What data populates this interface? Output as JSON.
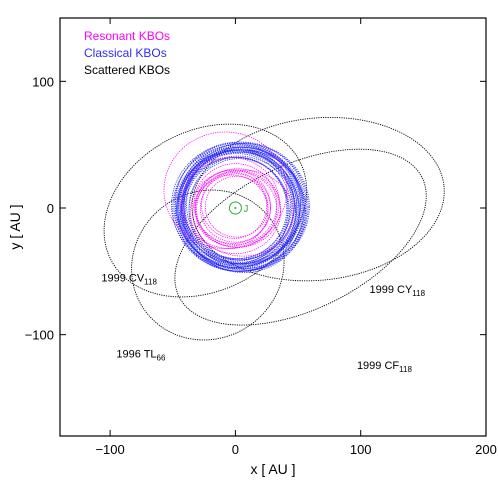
{
  "chart_data": {
    "type": "scatter",
    "title": "",
    "xlabel": "x [ AU ]",
    "ylabel": "y [ AU ]",
    "xlim": [
      -140,
      200
    ],
    "ylim": [
      -180,
      150
    ],
    "xticks": [
      -100,
      0,
      100,
      200
    ],
    "yticks": [
      -100,
      0,
      100
    ],
    "x_tick_labels": [
      "−100",
      "0",
      "100",
      "200"
    ],
    "y_tick_labels": [
      "−100",
      "0",
      "100"
    ],
    "grid": false,
    "legend_position": "top-left",
    "legend": [
      {
        "label": "Resonant KBOs",
        "color": "#ff00ff"
      },
      {
        "label": "Classical KBOs",
        "color": "#2a2aff"
      },
      {
        "label": "Scattered KBOs",
        "color": "#000000"
      }
    ],
    "center_marker": {
      "x": 0,
      "y": 0,
      "label": "J",
      "color": "#33aa33"
    },
    "series": [
      {
        "name": "Classical KBOs",
        "color": "#2a2aff",
        "orbits": [
          {
            "cx": 2,
            "cy": 0,
            "rx": 44,
            "ry": 44
          },
          {
            "cx": 3,
            "cy": 1,
            "rx": 46,
            "ry": 45
          },
          {
            "cx": 1,
            "cy": -1,
            "rx": 47,
            "ry": 46
          },
          {
            "cx": 4,
            "cy": 2,
            "rx": 48,
            "ry": 47
          },
          {
            "cx": 2,
            "cy": -2,
            "rx": 49,
            "ry": 48
          },
          {
            "cx": 5,
            "cy": 0,
            "rx": 50,
            "ry": 48
          },
          {
            "cx": 0,
            "cy": 2,
            "rx": 45,
            "ry": 44
          },
          {
            "cx": 3,
            "cy": -1,
            "rx": 51,
            "ry": 49
          },
          {
            "cx": 6,
            "cy": 1,
            "rx": 52,
            "ry": 50
          },
          {
            "cx": 1,
            "cy": 1,
            "rx": 43,
            "ry": 42
          },
          {
            "cx": 4,
            "cy": -3,
            "rx": 47,
            "ry": 47
          },
          {
            "cx": 2,
            "cy": 3,
            "rx": 50,
            "ry": 49
          },
          {
            "cx": 0,
            "cy": -2,
            "rx": 42,
            "ry": 42
          },
          {
            "cx": 5,
            "cy": 2,
            "rx": 46,
            "ry": 46
          },
          {
            "cx": 3,
            "cy": 0,
            "rx": 53,
            "ry": 50
          },
          {
            "cx": 1,
            "cy": 0,
            "rx": 41,
            "ry": 40
          },
          {
            "cx": 6,
            "cy": -1,
            "rx": 49,
            "ry": 47
          },
          {
            "cx": 2,
            "cy": 1,
            "rx": 48,
            "ry": 49
          },
          {
            "cx": 4,
            "cy": 0,
            "rx": 45,
            "ry": 46
          },
          {
            "cx": 3,
            "cy": 2,
            "rx": 44,
            "ry": 43
          },
          {
            "cx": 7,
            "cy": 0,
            "rx": 50,
            "ry": 51
          },
          {
            "cx": 0,
            "cy": 0,
            "rx": 47,
            "ry": 45
          },
          {
            "cx": 5,
            "cy": -2,
            "rx": 51,
            "ry": 48
          },
          {
            "cx": 2,
            "cy": -3,
            "rx": 46,
            "ry": 44
          },
          {
            "cx": 4,
            "cy": 3,
            "rx": 43,
            "ry": 44
          },
          {
            "cx": 1,
            "cy": 2,
            "rx": 52,
            "ry": 49
          },
          {
            "cx": 3,
            "cy": -2,
            "rx": 40,
            "ry": 41
          },
          {
            "cx": 6,
            "cy": 2,
            "rx": 48,
            "ry": 46
          },
          {
            "cx": 2,
            "cy": 0,
            "rx": 39,
            "ry": 40
          },
          {
            "cx": 5,
            "cy": 1,
            "rx": 54,
            "ry": 51
          }
        ]
      },
      {
        "name": "Resonant KBOs",
        "color": "#ff00ff",
        "orbits": [
          {
            "cx": 0,
            "cy": 0,
            "rx": 28,
            "ry": 27
          },
          {
            "cx": -2,
            "cy": 1,
            "rx": 30,
            "ry": 29
          },
          {
            "cx": 1,
            "cy": -1,
            "rx": 32,
            "ry": 30
          },
          {
            "cx": -1,
            "cy": 2,
            "rx": 26,
            "ry": 26
          },
          {
            "cx": 2,
            "cy": 0,
            "rx": 34,
            "ry": 31
          },
          {
            "cx": -3,
            "cy": -2,
            "rx": 29,
            "ry": 28
          },
          {
            "cx": 0,
            "cy": 3,
            "rx": 33,
            "ry": 32
          },
          {
            "cx": 1,
            "cy": 1,
            "rx": 25,
            "ry": 24
          },
          {
            "cx": 0,
            "cy": -3,
            "rx": 36,
            "ry": 33
          },
          {
            "cx": -8,
            "cy": 14,
            "rx": 49,
            "ry": 46
          },
          {
            "cx": -4,
            "cy": 4,
            "rx": 39,
            "ry": 36
          },
          {
            "cx": 6,
            "cy": -4,
            "rx": 40,
            "ry": 34
          }
        ]
      },
      {
        "name": "Scattered KBOs",
        "color": "#000000",
        "orbits": [
          {
            "label": "1999 CV118",
            "cx": -24,
            "cy": -2,
            "rx": 85,
            "ry": 63,
            "rot": -28
          },
          {
            "label": "1999 CY118",
            "cx": 66,
            "cy": 7,
            "rx": 101,
            "ry": 64,
            "rot": -6
          },
          {
            "label": "1999 CF118",
            "cx": 52,
            "cy": -23,
            "rx": 108,
            "ry": 57,
            "rot": -26
          },
          {
            "label": "1996 TL66",
            "cx": -22,
            "cy": -45,
            "rx": 62,
            "ry": 58,
            "rot": -36
          }
        ]
      }
    ],
    "annotations": [
      {
        "name": "1999 CV",
        "sub": "118",
        "x": -107,
        "y": -58
      },
      {
        "name": "1999 CY",
        "sub": "118",
        "x": 107,
        "y": -67
      },
      {
        "name": "1996 TL",
        "sub": "66",
        "x": -95,
        "y": -118
      },
      {
        "name": "1999 CF",
        "sub": "118",
        "x": 97,
        "y": -127
      }
    ]
  }
}
